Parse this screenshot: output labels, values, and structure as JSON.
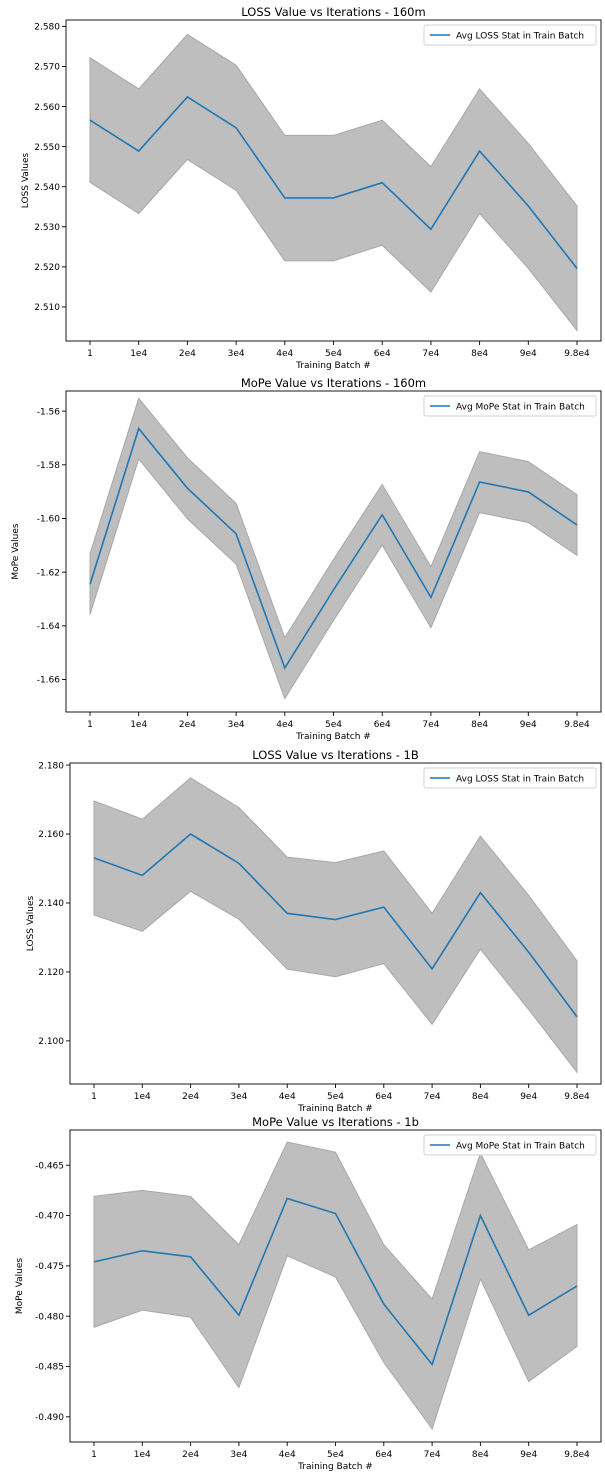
{
  "colors": {
    "line": "#1f77b4",
    "band_fill": "#bebebe",
    "band_edge": "#a8a8a8",
    "axis": "#000000"
  },
  "chart_data": [
    {
      "type": "line",
      "title": "LOSS Value vs Iterations - 160m",
      "xlabel": "Training Batch #",
      "ylabel": "LOSS Values",
      "categories": [
        "1",
        "1e4",
        "2e4",
        "3e4",
        "4e4",
        "5e4",
        "6e4",
        "7e4",
        "8e4",
        "9e4",
        "9.8e4"
      ],
      "yticks": [
        "2.510",
        "2.520",
        "2.530",
        "2.540",
        "2.550",
        "2.560",
        "2.570",
        "2.580"
      ],
      "ylim": [
        2.5015,
        2.5816
      ],
      "legend": "top-right",
      "grid": false,
      "series": [
        {
          "name": "Avg LOSS Stat in Train Batch",
          "values": [
            2.5566,
            2.5489,
            2.5624,
            2.5547,
            2.5372,
            2.5372,
            2.541,
            2.5294,
            2.5489,
            2.5352,
            2.5196
          ],
          "lower": [
            2.5411,
            2.5333,
            2.5468,
            2.5391,
            2.5215,
            2.5215,
            2.5254,
            2.5137,
            2.5333,
            2.5196,
            2.5041
          ],
          "upper": [
            2.5722,
            2.5644,
            2.578,
            2.5703,
            2.5528,
            2.5528,
            2.5566,
            2.545,
            2.5644,
            2.5508,
            2.5352
          ]
        }
      ]
    },
    {
      "type": "line",
      "title": "MoPe Value vs Iterations - 160m",
      "xlabel": "Training Batch #",
      "ylabel": "MoPe Values",
      "categories": [
        "1",
        "1e4",
        "2e4",
        "3e4",
        "4e4",
        "5e4",
        "6e4",
        "7e4",
        "8e4",
        "9e4",
        "9.8e4"
      ],
      "yticks": [
        "-1.66",
        "-1.64",
        "-1.62",
        "-1.60",
        "-1.58",
        "-1.56"
      ],
      "ylim": [
        -1.6721,
        -1.5525
      ],
      "legend": "top-right",
      "grid": false,
      "series": [
        {
          "name": "Avg MoPe Stat in Train Batch",
          "values": [
            -1.6245,
            -1.5665,
            -1.5887,
            -1.6057,
            -1.6557,
            -1.6266,
            -1.5986,
            -1.6294,
            -1.5864,
            -1.5901,
            -1.6024
          ],
          "lower": [
            -1.6358,
            -1.5778,
            -1.6001,
            -1.617,
            -1.6671,
            -1.638,
            -1.6099,
            -1.6407,
            -1.5978,
            -1.6015,
            -1.6137
          ],
          "upper": [
            -1.6132,
            -1.5552,
            -1.5774,
            -1.5944,
            -1.6444,
            -1.6153,
            -1.5873,
            -1.618,
            -1.5751,
            -1.5788,
            -1.5911
          ]
        }
      ]
    },
    {
      "type": "line",
      "title": "LOSS Value vs Iterations - 1B",
      "xlabel": "Training Batch #",
      "ylabel": "LOSS Values",
      "categories": [
        "1",
        "1e4",
        "2e4",
        "3e4",
        "4e4",
        "5e4",
        "6e4",
        "7e4",
        "8e4",
        "9e4",
        "9.8e4"
      ],
      "yticks": [
        "2.100",
        "2.120",
        "2.140",
        "2.160",
        "2.180"
      ],
      "ylim": [
        2.0875,
        2.1806
      ],
      "legend": "top-right",
      "grid": false,
      "series": [
        {
          "name": "Avg LOSS Stat in Train Batch",
          "values": [
            2.1531,
            2.148,
            2.16,
            2.1515,
            2.137,
            2.1352,
            2.1388,
            2.1209,
            2.143,
            2.1257,
            2.107
          ],
          "lower": [
            2.1365,
            2.1318,
            2.1434,
            2.1353,
            2.1208,
            2.1186,
            2.1224,
            2.1048,
            2.1266,
            2.1091,
            2.0909
          ],
          "upper": [
            2.1696,
            2.1643,
            2.1763,
            2.1677,
            2.1533,
            2.1517,
            2.1551,
            2.137,
            2.1594,
            2.1422,
            2.1232
          ]
        }
      ]
    },
    {
      "type": "line",
      "title": "MoPe Value vs Iterations - 1b",
      "xlabel": "Training Batch #",
      "ylabel": "MoPe Values",
      "categories": [
        "1",
        "1e4",
        "2e4",
        "3e4",
        "4e4",
        "5e4",
        "6e4",
        "7e4",
        "8e4",
        "9e4",
        "9.8e4"
      ],
      "yticks": [
        "-0.490",
        "-0.485",
        "-0.480",
        "-0.475",
        "-0.470",
        "-0.465"
      ],
      "ylim": [
        -0.4925,
        -0.4615
      ],
      "legend": "top-right",
      "grid": false,
      "series": [
        {
          "name": "Avg MoPe Stat in Train Batch",
          "values": [
            -0.4746,
            -0.4735,
            -0.4741,
            -0.4799,
            -0.4683,
            -0.4698,
            -0.4788,
            -0.4848,
            -0.47,
            -0.4799,
            -0.477
          ],
          "lower": [
            -0.4811,
            -0.4794,
            -0.4801,
            -0.4871,
            -0.474,
            -0.4761,
            -0.4846,
            -0.4912,
            -0.4763,
            -0.4865,
            -0.483
          ],
          "upper": [
            -0.4681,
            -0.4675,
            -0.4681,
            -0.4729,
            -0.4627,
            -0.4637,
            -0.4729,
            -0.4783,
            -0.4638,
            -0.4734,
            -0.4709
          ]
        }
      ]
    }
  ]
}
